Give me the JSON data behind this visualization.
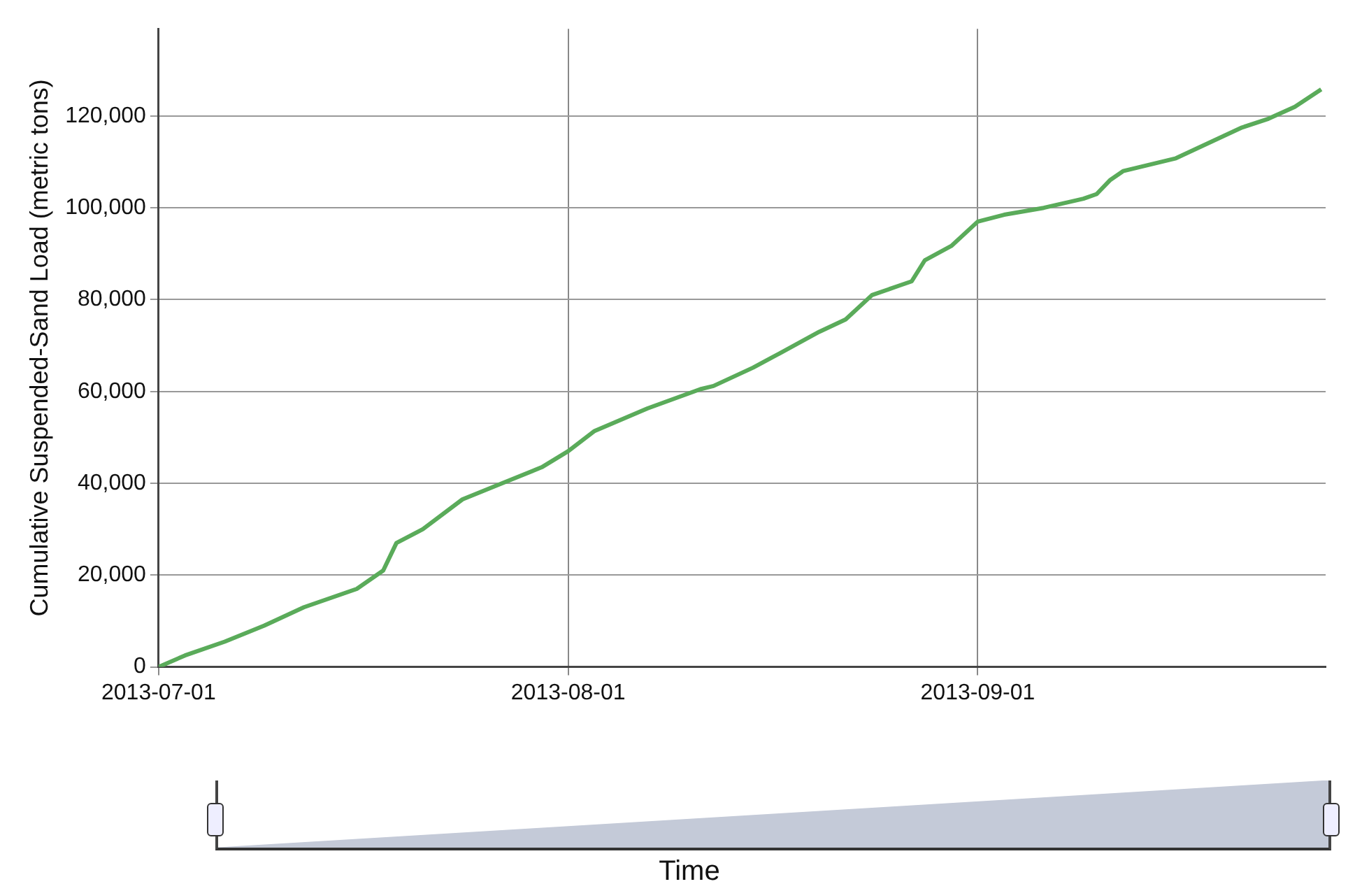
{
  "chart_data": {
    "type": "line",
    "annotations": [
      "Time"
    ],
    "ylabel": "Cumulative Suspended-Sand Load (metric tons)",
    "x": [
      "2013-07-01",
      "2013-07-03",
      "2013-07-06",
      "2013-07-09",
      "2013-07-12",
      "2013-07-16",
      "2013-07-18",
      "2013-07-19",
      "2013-07-21",
      "2013-07-24",
      "2013-07-27",
      "2013-07-30",
      "2013-08-01",
      "2013-08-03",
      "2013-08-07",
      "2013-08-11",
      "2013-08-12",
      "2013-08-15",
      "2013-08-17",
      "2013-08-20",
      "2013-08-22",
      "2013-08-24",
      "2013-08-26",
      "2013-08-27",
      "2013-08-28",
      "2013-08-30",
      "2013-09-01",
      "2013-09-03",
      "2013-09-06",
      "2013-09-09",
      "2013-09-10",
      "2013-09-11",
      "2013-09-12",
      "2013-09-16",
      "2013-09-21",
      "2013-09-23",
      "2013-09-25",
      "2013-09-27"
    ],
    "series": [
      {
        "color": "#5aab5a",
        "values": [
          0,
          2500,
          5500,
          9000,
          13000,
          17000,
          21000,
          27000,
          30000,
          36500,
          40000,
          43500,
          47000,
          51400,
          56300,
          60500,
          61200,
          65200,
          68300,
          73000,
          75700,
          81000,
          83000,
          84000,
          88600,
          91700,
          97000,
          98500,
          100000,
          102000,
          103000,
          106000,
          108000,
          110800,
          117500,
          119400,
          122000,
          125800
        ]
      }
    ],
    "xlim": [
      "2013-07-01",
      "2013-09-27T08:00"
    ],
    "xticks": [
      "2013-07-01",
      "2013-08-01",
      "2013-09-01"
    ],
    "ylim": [
      0,
      139000
    ],
    "yticks": [
      0,
      {
        "value": 20000,
        "label": "20,000"
      },
      {
        "value": 40000,
        "label": "40,000"
      },
      {
        "value": 60000,
        "label": "60,000"
      },
      {
        "value": 80000,
        "label": "80,000"
      },
      {
        "value": 100000,
        "label": "100,000"
      },
      {
        "value": 120000,
        "label": "120,000"
      }
    ],
    "grid": true,
    "legend": false,
    "marker": "none",
    "line_style": "solid"
  }
}
